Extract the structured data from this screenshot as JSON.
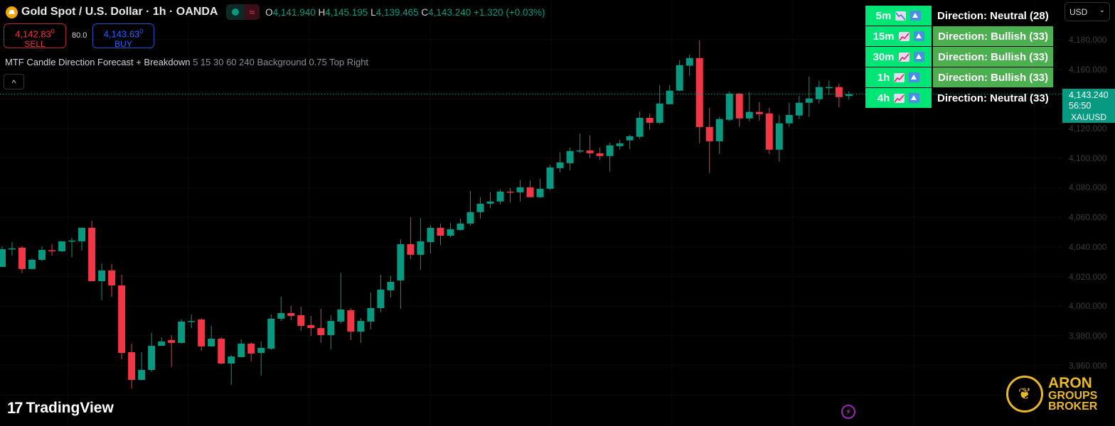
{
  "header": {
    "title": "Gold Spot / U.S. Dollar · 1h · OANDA",
    "symbol_icon": "gold-bars-icon",
    "wave_icon": "≈",
    "ohlc": {
      "o_label": "O",
      "o": "4,141.940",
      "h_label": "H",
      "h": "4,145.195",
      "l_label": "L",
      "l": "4,139.465",
      "c_label": "C",
      "c": "4,143.240",
      "change": "+1.320 (+0.03%)"
    }
  },
  "trade": {
    "sell_price": "4,142.83",
    "sell_sup": "0",
    "sell_label": "SELL",
    "spread": "80.0",
    "buy_price": "4,143.63",
    "buy_sup": "0",
    "buy_label": "BUY"
  },
  "indicator": {
    "name": "MTF Candle Direction Forecast + Breakdown",
    "args": "5 15 30 60 240 Background 0.75 Top Right",
    "collapse_icon": "^"
  },
  "forecast_table": [
    {
      "tf": "5m",
      "trend_icon": "chart-decreasing",
      "direction": "Direction: Neutral (28)",
      "state": "neutral"
    },
    {
      "tf": "15m",
      "trend_icon": "chart-increasing",
      "direction": "Direction: Bullish (33)",
      "state": "bullish"
    },
    {
      "tf": "30m",
      "trend_icon": "chart-increasing",
      "direction": "Direction: Bullish (33)",
      "state": "bullish"
    },
    {
      "tf": "1h",
      "trend_icon": "chart-increasing",
      "direction": "Direction: Bullish (33)",
      "state": "bullish"
    },
    {
      "tf": "4h",
      "trend_icon": "chart-increasing",
      "direction": "Direction: Neutral (33)",
      "state": "neutral"
    }
  ],
  "currency_select": "USD",
  "price_axis": [
    "4,180.000",
    "4,160.000",
    "4,120.000",
    "4,100.000",
    "4,080.000",
    "4,060.000",
    "4,040.000",
    "4,020.000",
    "4,000.000",
    "3,980.000",
    "3,960.000"
  ],
  "last_price": {
    "symbol": "XAUUSD",
    "price": "4,143.240",
    "countdown": "56:50"
  },
  "branding": {
    "tradingview": "TradingView",
    "aron_1": "ARON",
    "aron_2": "GROUPS",
    "aron_3": "BROKER"
  },
  "colors": {
    "up": "#089981",
    "down": "#f23645",
    "table_tf": "#00e676",
    "table_bull": "#4caf50",
    "background": "#000000"
  },
  "chart_data": {
    "type": "candlestick",
    "timeframe": "1h",
    "ylim": [
      3940,
      4190
    ],
    "ohlc": [
      [
        4026.5,
        4040.4,
        4026.5,
        4038.5
      ],
      [
        4038.5,
        4043.3,
        4034.2,
        4039.0
      ],
      [
        4039.5,
        4040.4,
        4022.2,
        4025.1
      ],
      [
        4025.1,
        4032.3,
        4024.6,
        4031.3
      ],
      [
        4031.3,
        4040.4,
        4030.4,
        4038.0
      ],
      [
        4037.8,
        4041.9,
        4034.2,
        4037.3
      ],
      [
        4037.1,
        4043.8,
        4036.6,
        4043.8
      ],
      [
        4044.0,
        4046.2,
        4033.2,
        4044.3
      ],
      [
        4043.8,
        4053.4,
        4037.6,
        4052.9
      ],
      [
        4052.9,
        4057.7,
        4016.9,
        4016.9
      ],
      [
        4016.9,
        4028.9,
        4004.0,
        4024.1
      ],
      [
        4024.1,
        4028.4,
        4006.4,
        4014.0
      ],
      [
        4014.0,
        4021.2,
        3964.1,
        3968.4
      ],
      [
        3968.9,
        3974.7,
        3944.4,
        3950.2
      ],
      [
        3950.2,
        3968.9,
        3949.7,
        3956.9
      ],
      [
        3956.9,
        3981.9,
        3955.5,
        3973.2
      ],
      [
        3973.2,
        3979.0,
        3973.2,
        3976.1
      ],
      [
        3977.1,
        3980.4,
        3958.8,
        3975.2
      ],
      [
        3975.2,
        3991.0,
        3974.7,
        3989.6
      ],
      [
        3989.6,
        3994.4,
        3985.2,
        3990.0
      ],
      [
        3991.0,
        3992.0,
        3969.9,
        3972.8
      ],
      [
        3972.8,
        3986.7,
        3972.8,
        3978.0
      ],
      [
        3978.0,
        3979.0,
        3960.8,
        3961.2
      ],
      [
        3961.2,
        3967.0,
        3946.8,
        3966.0
      ],
      [
        3965.6,
        3977.6,
        3965.6,
        3974.7
      ],
      [
        3974.7,
        3975.6,
        3962.7,
        3968.0
      ],
      [
        3968.4,
        3976.1,
        3953.1,
        3971.8
      ],
      [
        3971.3,
        3994.4,
        3970.4,
        3991.5
      ],
      [
        3991.5,
        4006.4,
        3990.0,
        3995.3
      ],
      [
        3995.3,
        4000.1,
        3990.5,
        3993.4
      ],
      [
        3993.9,
        3999.6,
        3983.3,
        3986.7
      ],
      [
        3987.2,
        3993.4,
        3979.9,
        3985.2
      ],
      [
        3985.2,
        3998.2,
        3975.2,
        3980.4
      ],
      [
        3980.4,
        3993.9,
        3970.8,
        3990.0
      ],
      [
        3989.6,
        4022.7,
        3988.1,
        3997.7
      ],
      [
        3997.2,
        3998.7,
        3977.1,
        3982.8
      ],
      [
        3982.8,
        3991.9,
        3975.2,
        3990.0
      ],
      [
        3989.6,
        4009.2,
        3984.3,
        3998.7
      ],
      [
        3998.7,
        4021.2,
        3995.8,
        4011.2
      ],
      [
        4010.7,
        4020.3,
        4005.9,
        4016.4
      ],
      [
        4017.4,
        4045.2,
        3998.2,
        4041.9
      ],
      [
        4041.9,
        4060.1,
        4031.8,
        4034.7
      ],
      [
        4034.7,
        4059.6,
        4024.6,
        4043.8
      ],
      [
        4043.3,
        4054.8,
        4035.6,
        4052.9
      ],
      [
        4052.9,
        4055.8,
        4041.4,
        4047.6
      ],
      [
        4047.6,
        4056.3,
        4046.7,
        4052.0
      ],
      [
        4051.5,
        4059.2,
        4051.0,
        4055.8
      ],
      [
        4055.8,
        4077.9,
        4054.4,
        4063.5
      ],
      [
        4063.5,
        4073.6,
        4059.2,
        4069.2
      ],
      [
        4069.2,
        4076.9,
        4066.4,
        4070.7
      ],
      [
        4070.7,
        4078.8,
        4068.8,
        4077.4
      ],
      [
        4077.4,
        4079.8,
        4070.2,
        4076.9
      ],
      [
        4076.9,
        4085.1,
        4070.7,
        4080.3
      ],
      [
        4080.3,
        4084.6,
        4073.6,
        4073.6
      ],
      [
        4073.6,
        4086.0,
        4073.1,
        4079.3
      ],
      [
        4079.3,
        4095.6,
        4078.4,
        4093.7
      ],
      [
        4093.2,
        4103.8,
        4090.4,
        4097.1
      ],
      [
        4096.6,
        4107.2,
        4091.8,
        4104.8
      ],
      [
        4105.0,
        4116.7,
        4103.3,
        4105.2
      ],
      [
        4105.2,
        4115.3,
        4100.0,
        4103.3
      ],
      [
        4103.3,
        4107.2,
        4099.0,
        4101.4
      ],
      [
        4101.4,
        4110.5,
        4090.8,
        4108.6
      ],
      [
        4108.1,
        4112.4,
        4105.7,
        4110.0
      ],
      [
        4112.0,
        4115.8,
        4106.2,
        4114.8
      ],
      [
        4114.4,
        4131.6,
        4112.9,
        4127.2
      ],
      [
        4127.2,
        4130.2,
        4119.2,
        4123.9
      ],
      [
        4123.9,
        4149.4,
        4123.0,
        4136.9
      ],
      [
        4136.4,
        4149.4,
        4136.4,
        4145.6
      ],
      [
        4145.6,
        4166.2,
        4145.1,
        4162.8
      ],
      [
        4162.4,
        4170.0,
        4155.6,
        4167.6
      ],
      [
        4167.6,
        4179.6,
        4110.0,
        4121.0
      ],
      [
        4121.0,
        4134.0,
        4089.9,
        4111.4
      ],
      [
        4111.4,
        4127.8,
        4102.8,
        4126.4
      ],
      [
        4125.9,
        4145.1,
        4124.9,
        4143.6
      ],
      [
        4143.6,
        4144.1,
        4121.1,
        4126.8
      ],
      [
        4126.8,
        4144.6,
        4124.9,
        4131.2
      ],
      [
        4131.2,
        4137.9,
        4125.4,
        4129.7
      ],
      [
        4130.2,
        4134.0,
        4102.8,
        4105.7
      ],
      [
        4105.7,
        4129.2,
        4097.6,
        4123.5
      ],
      [
        4123.5,
        4137.4,
        4121.1,
        4129.2
      ],
      [
        4128.8,
        4142.2,
        4126.4,
        4137.4
      ],
      [
        4137.4,
        4155.1,
        4127.8,
        4140.3
      ],
      [
        4139.8,
        4152.3,
        4136.9,
        4148.0
      ],
      [
        4147.7,
        4152.3,
        4142.7,
        4148.0
      ],
      [
        4148.0,
        4150.4,
        4134.5,
        4141.2
      ],
      [
        4141.94,
        4145.195,
        4139.465,
        4143.24
      ]
    ],
    "last_close": 4143.24
  }
}
